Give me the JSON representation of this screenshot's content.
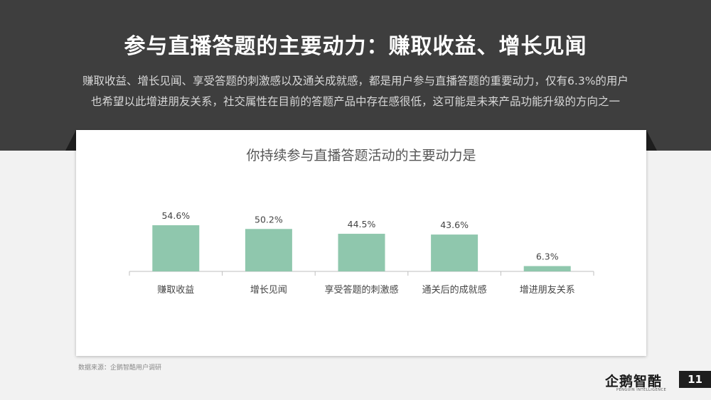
{
  "header": {
    "title": "参与直播答题的主要动力：赚取收益、增长见闻",
    "subtitle_line1": "赚取收益、增长见闻、享受答题的刺激感以及通关成就感，都是用户参与直播答题的重要动力，仅有6.3%的用户",
    "subtitle_line2": "也希望以此增进朋友关系，社交属性在目前的答题产品中存在感很低，这可能是未来产品功能升级的方向之一"
  },
  "chart_data": {
    "type": "bar",
    "title": "你持续参与直播答题活动的主要动力是",
    "categories": [
      "赚取收益",
      "增长见闻",
      "享受答题的刺激感",
      "通关后的成就感",
      "增进朋友关系"
    ],
    "values": [
      54.6,
      50.2,
      44.5,
      43.6,
      6.3
    ],
    "value_labels": [
      "54.6%",
      "50.2%",
      "44.5%",
      "43.6%",
      "6.3%"
    ],
    "ylim": [
      0,
      100
    ],
    "grid": false,
    "legend": "none",
    "bar_color": "#8fc7ad",
    "axis_color": "#bfbfbf",
    "xlabel": "",
    "ylabel": ""
  },
  "footer": {
    "source": "数据来源：企鹅智酷用户调研",
    "logo_text": "企鹅智酷",
    "logo_subtext": "PENGUIN INTELLIGENCE",
    "page_number": "11"
  }
}
